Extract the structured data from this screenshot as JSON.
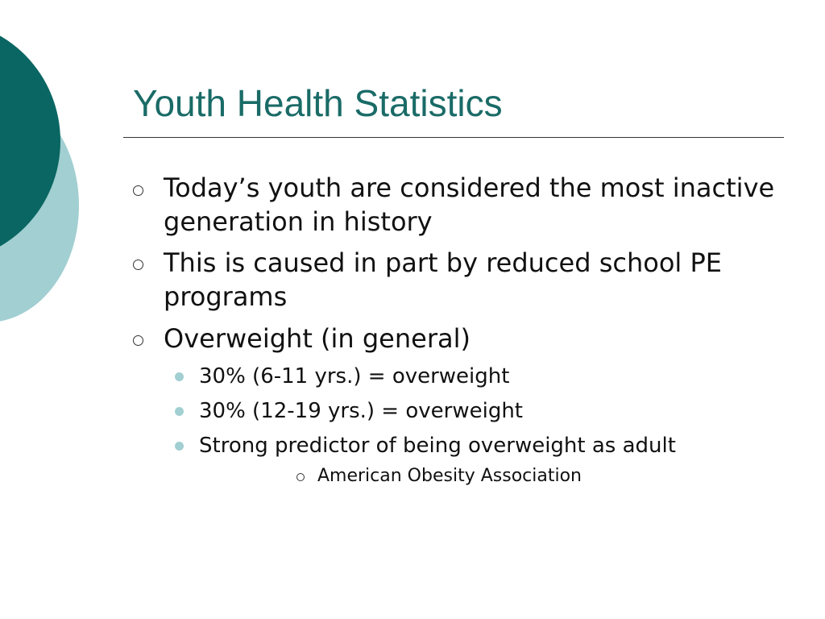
{
  "slide": {
    "title": "Youth Health Statistics",
    "bullets": [
      {
        "text": "Today’s youth are considered the most inactive generation in history"
      },
      {
        "text": "This is caused in part by reduced school PE programs"
      },
      {
        "text": "Overweight (in general)",
        "children": [
          {
            "text": "30% (6-11 yrs.) = overweight"
          },
          {
            "text": "30% (12-19 yrs.) = overweight"
          },
          {
            "text": "Strong predictor of being overweight as adult",
            "children": [
              {
                "text": "American Obesity Association"
              }
            ]
          }
        ]
      }
    ]
  },
  "colors": {
    "title": "#1a6b67",
    "circle_dark": "#0a6662",
    "circle_light": "#a2cfd1",
    "sub_bullet": "#a2cfd1",
    "body_text": "#111111"
  },
  "icons": {
    "level1_bullet": "hollow-circle-bullet",
    "level2_bullet": "filled-dot-bullet",
    "level3_bullet": "hollow-circle-bullet"
  }
}
